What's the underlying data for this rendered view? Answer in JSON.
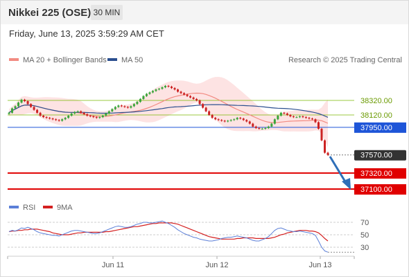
{
  "header": {
    "title": "Nikkei 225 (OSE)",
    "timeframe": "30 MIN",
    "datetime": "Friday, June 13, 2025 3:59:29 AM CET"
  },
  "legend": {
    "ma20": "MA 20 + Bollinger Bands",
    "ma50": "MA 50",
    "credit": "Research © 2025 Trading Central",
    "rsi": "RSI",
    "ma9": "9MA"
  },
  "colors": {
    "ma20": "#f28b82",
    "band": "#fde0e0",
    "ma50": "#2b4f8f",
    "up": "#3aa53a",
    "down": "#cc2222",
    "support": "#e00000",
    "pivot": "#1e55d8",
    "resistance": "#7ab800",
    "rsi": "#5b7fd8",
    "ma9": "#d42020",
    "last": "#333333"
  },
  "chart_data": {
    "type": "candlestick",
    "instrument": "Nikkei 225 (OSE)",
    "interval": "30 MIN",
    "xticks": [
      "Jun 11",
      "Jun 12",
      "Jun 13"
    ],
    "levels": [
      {
        "value": 38320.0,
        "label": "38320.00",
        "kind": "resistance"
      },
      {
        "value": 38120.0,
        "label": "38120.00",
        "kind": "resistance"
      },
      {
        "value": 37950.0,
        "label": "37950.00",
        "kind": "pivot"
      },
      {
        "value": 37570.0,
        "label": "37570.00",
        "kind": "last"
      },
      {
        "value": 37320.0,
        "label": "37320.00",
        "kind": "support"
      },
      {
        "value": 37100.0,
        "label": "37100.00",
        "kind": "support"
      }
    ],
    "ylim": [
      37100,
      38320
    ],
    "close": [
      38150,
      38210,
      38240,
      38290,
      38330,
      38310,
      38270,
      38230,
      38190,
      38150,
      38110,
      38090,
      38080,
      38070,
      38060,
      38050,
      38040,
      38060,
      38080,
      38110,
      38140,
      38160,
      38170,
      38150,
      38130,
      38110,
      38100,
      38090,
      38080,
      38090,
      38110,
      38140,
      38170,
      38200,
      38230,
      38250,
      38240,
      38230,
      38220,
      38240,
      38270,
      38300,
      38340,
      38380,
      38410,
      38430,
      38450,
      38470,
      38480,
      38500,
      38520,
      38510,
      38490,
      38470,
      38440,
      38420,
      38400,
      38380,
      38360,
      38340,
      38320,
      38270,
      38220,
      38170,
      38120,
      38080,
      38060,
      38050,
      38040,
      38030,
      38040,
      38050,
      38060,
      38080,
      38070,
      38050,
      38030,
      38000,
      37960,
      37940,
      37930,
      37930,
      37940,
      37960,
      38000,
      38060,
      38110,
      38150,
      38140,
      38120,
      38100,
      38090,
      38090,
      38100,
      38090,
      38080,
      38070,
      38060,
      38020,
      37930,
      37770,
      37600,
      37570
    ],
    "rsi": [
      55,
      57,
      56,
      58,
      61,
      60,
      62,
      60,
      58,
      55,
      53,
      52,
      51,
      50,
      49,
      49,
      48,
      50,
      52,
      54,
      56,
      57,
      57,
      56,
      55,
      54,
      53,
      52,
      52,
      53,
      55,
      57,
      59,
      61,
      63,
      64,
      63,
      62,
      62,
      63,
      65,
      67,
      68,
      70,
      70,
      69,
      69,
      70,
      71,
      72,
      70,
      68,
      65,
      62,
      58,
      55,
      52,
      50,
      48,
      46,
      45,
      43,
      42,
      41,
      40,
      40,
      41,
      42,
      44,
      45,
      46,
      46,
      47,
      48,
      47,
      46,
      45,
      43,
      41,
      40,
      40,
      42,
      44,
      47,
      52,
      57,
      60,
      61,
      59,
      57,
      56,
      55,
      55,
      56,
      55,
      54,
      53,
      52,
      49,
      40,
      30,
      24,
      22
    ],
    "rsi_ma9": [
      55,
      56,
      56,
      57,
      57,
      58,
      58,
      59,
      59,
      59,
      58,
      57,
      56,
      55,
      53,
      52,
      51,
      50,
      50,
      50,
      51,
      52,
      53,
      53,
      54,
      54,
      54,
      54,
      54,
      54,
      54,
      55,
      55,
      56,
      57,
      58,
      59,
      60,
      61,
      62,
      63,
      63,
      64,
      65,
      66,
      67,
      68,
      68,
      69,
      69,
      69,
      69,
      69,
      68,
      67,
      65,
      63,
      61,
      59,
      57,
      55,
      53,
      51,
      49,
      47,
      46,
      45,
      44,
      43,
      43,
      43,
      43,
      43,
      44,
      44,
      45,
      45,
      45,
      45,
      44,
      44,
      44,
      44,
      44,
      45,
      46,
      48,
      50,
      51,
      53,
      54,
      55,
      56,
      57,
      57,
      57,
      56,
      56,
      55,
      53,
      49,
      44,
      40
    ],
    "rsi_ticks": [
      70,
      50,
      30
    ]
  }
}
